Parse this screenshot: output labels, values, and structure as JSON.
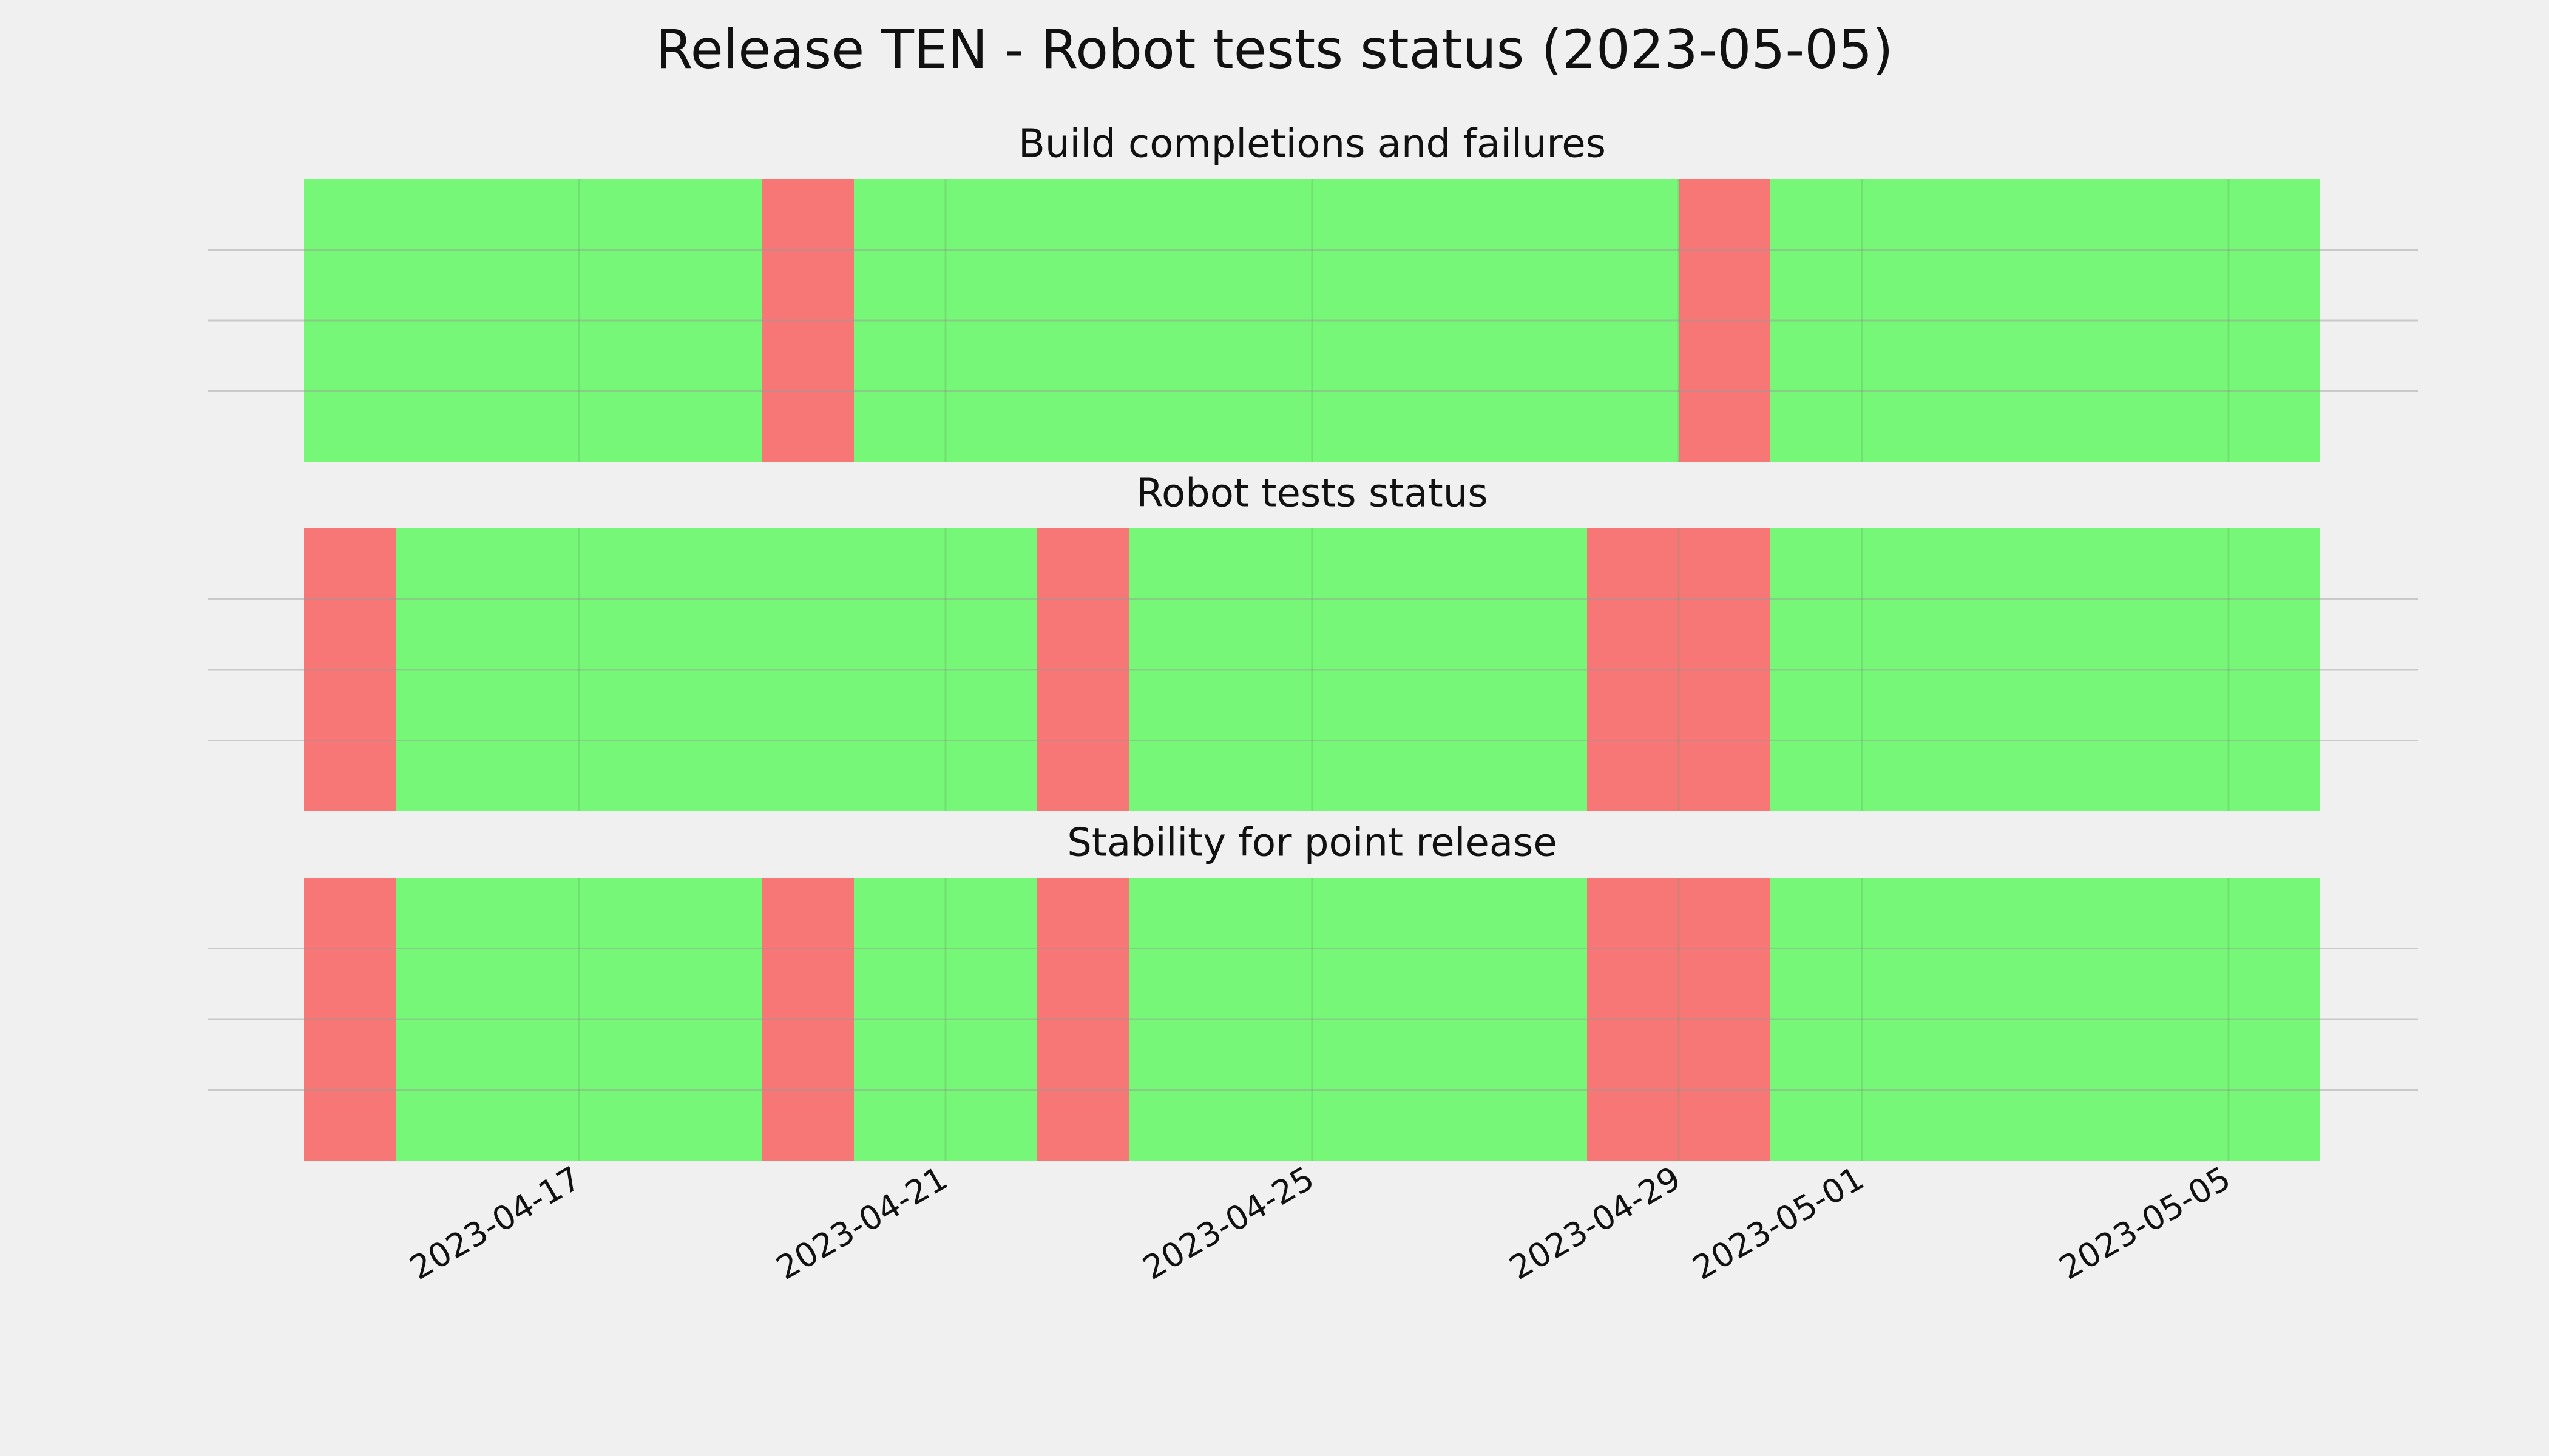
{
  "title": "Release TEN - Robot tests status (2023-05-05)",
  "chart_data": [
    {
      "type": "status-timeline",
      "title": "Build completions and failures",
      "x": [
        "2023-04-14",
        "2023-04-15",
        "2023-04-16",
        "2023-04-17",
        "2023-04-18",
        "2023-04-19",
        "2023-04-20",
        "2023-04-21",
        "2023-04-22",
        "2023-04-23",
        "2023-04-24",
        "2023-04-25",
        "2023-04-26",
        "2023-04-27",
        "2023-04-28",
        "2023-04-29",
        "2023-04-30",
        "2023-05-01",
        "2023-05-02",
        "2023-05-03",
        "2023-05-04",
        "2023-05-05"
      ],
      "values": [
        1,
        1,
        1,
        1,
        1,
        0,
        1,
        1,
        1,
        1,
        1,
        1,
        1,
        1,
        1,
        0,
        1,
        1,
        1,
        1,
        1,
        1
      ],
      "colors": [
        "#f77777",
        "#77f777"
      ],
      "xlim": [
        "2023-04-14",
        "2023-05-06"
      ],
      "xticks": [
        "2023-04-17",
        "2023-04-21",
        "2023-04-25",
        "2023-04-29",
        "2023-05-01",
        "2023-05-05"
      ],
      "ylim": [
        0,
        1
      ],
      "yticks": [
        0.25,
        0.5,
        0.75
      ],
      "grid": true
    },
    {
      "type": "status-timeline",
      "title": "Robot tests status",
      "x": [
        "2023-04-14",
        "2023-04-15",
        "2023-04-16",
        "2023-04-17",
        "2023-04-18",
        "2023-04-19",
        "2023-04-20",
        "2023-04-21",
        "2023-04-22",
        "2023-04-23",
        "2023-04-24",
        "2023-04-25",
        "2023-04-26",
        "2023-04-27",
        "2023-04-28",
        "2023-04-29",
        "2023-04-30",
        "2023-05-01",
        "2023-05-02",
        "2023-05-03",
        "2023-05-04",
        "2023-05-05"
      ],
      "values": [
        0,
        1,
        1,
        1,
        1,
        1,
        1,
        1,
        0,
        1,
        1,
        1,
        1,
        1,
        0,
        0,
        1,
        1,
        1,
        1,
        1,
        1
      ],
      "colors": [
        "#f77777",
        "#77f777"
      ],
      "xlim": [
        "2023-04-14",
        "2023-05-06"
      ],
      "xticks": [
        "2023-04-17",
        "2023-04-21",
        "2023-04-25",
        "2023-04-29",
        "2023-05-01",
        "2023-05-05"
      ],
      "ylim": [
        0,
        1
      ],
      "yticks": [
        0.25,
        0.5,
        0.75
      ],
      "grid": true
    },
    {
      "type": "status-timeline",
      "title": "Stability for point release",
      "x": [
        "2023-04-14",
        "2023-04-15",
        "2023-04-16",
        "2023-04-17",
        "2023-04-18",
        "2023-04-19",
        "2023-04-20",
        "2023-04-21",
        "2023-04-22",
        "2023-04-23",
        "2023-04-24",
        "2023-04-25",
        "2023-04-26",
        "2023-04-27",
        "2023-04-28",
        "2023-04-29",
        "2023-04-30",
        "2023-05-01",
        "2023-05-02",
        "2023-05-03",
        "2023-05-04",
        "2023-05-05"
      ],
      "values": [
        0,
        1,
        1,
        1,
        1,
        0,
        1,
        1,
        0,
        1,
        1,
        1,
        1,
        1,
        0,
        0,
        1,
        1,
        1,
        1,
        1,
        1
      ],
      "colors": [
        "#f77777",
        "#77f777"
      ],
      "xlim": [
        "2023-04-14",
        "2023-05-06"
      ],
      "xticks": [
        "2023-04-17",
        "2023-04-21",
        "2023-04-25",
        "2023-04-29",
        "2023-05-01",
        "2023-05-05"
      ],
      "ylim": [
        0,
        1
      ],
      "yticks": [
        0.25,
        0.5,
        0.75
      ],
      "grid": true,
      "show_xtick_labels": true
    }
  ]
}
